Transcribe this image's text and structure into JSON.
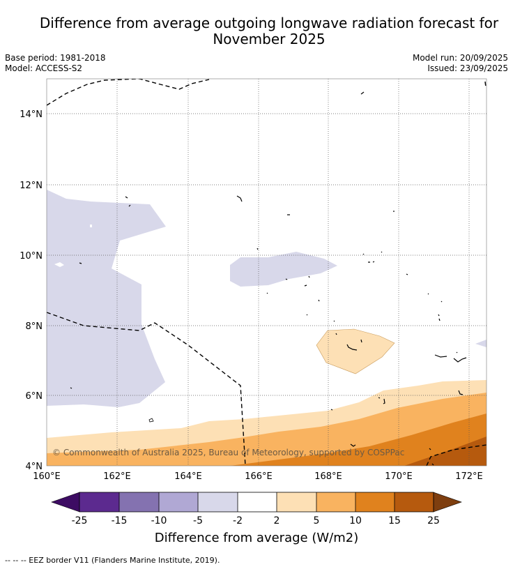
{
  "header": {
    "title_line1": "Difference from average outgoing longwave radiation forecast for",
    "title_line2": "November 2025",
    "base_period": "Base period: 1981-2018",
    "model": "Model: ACCESS-S2",
    "model_run": "Model run: 20/09/2025",
    "issued": "Issued: 23/09/2025"
  },
  "map": {
    "copyright": "© Commonwealth of Australia 2025, Bureau of Meteorology, supported by COSPPac",
    "lon_ticks": [
      "160°E",
      "162°E",
      "164°E",
      "166°E",
      "168°E",
      "170°E",
      "172°E"
    ],
    "lat_ticks": [
      "14°N",
      "12°N",
      "10°N",
      "8°N",
      "6°N",
      "4°N"
    ]
  },
  "colorbar": {
    "title": "Difference from average (W/m2)",
    "tick_labels": [
      "-25",
      "-15",
      "-10",
      "-5",
      "-2",
      "2",
      "5",
      "10",
      "15",
      "25"
    ],
    "colors": [
      "#3d0c63",
      "#5c2a8f",
      "#8472b0",
      "#b0a8d4",
      "#d8d8ea",
      "#ffffff",
      "#fde0b5",
      "#f9b360",
      "#e0821e",
      "#b65a0e",
      "#7e3e0f"
    ]
  },
  "footnote": "--  --  -- EEZ border V11 (Flanders Marine Institute, 2019)."
}
